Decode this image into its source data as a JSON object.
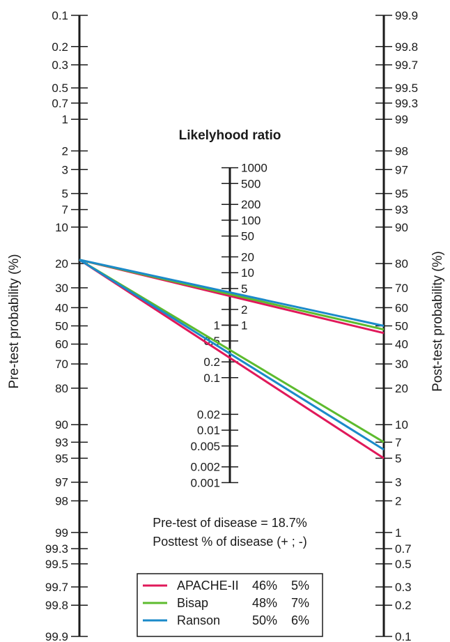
{
  "chart_data": {
    "type": "nomogram",
    "title": "Likelyhood ratio",
    "left_axis": {
      "label": "Pre-test probability (%)",
      "ticks": [
        "0.1",
        "0.2",
        "0.3",
        "0.5",
        "0.7",
        "1",
        "2",
        "3",
        "5",
        "7",
        "10",
        "20",
        "30",
        "40",
        "50",
        "60",
        "70",
        "80",
        "90",
        "93",
        "95",
        "97",
        "98",
        "99",
        "99.3",
        "99.5",
        "99.7",
        "99.8",
        "99.9"
      ]
    },
    "middle_axis": {
      "right_ticks": [
        "1000",
        "500",
        "200",
        "100",
        "50",
        "20",
        "10",
        "5",
        "2",
        "1"
      ],
      "left_ticks": [
        "1",
        "0.5",
        "0.2",
        "0.1",
        "0.02",
        "0.01",
        "0.005",
        "0.002",
        "0.001"
      ]
    },
    "right_axis": {
      "label": "Post-test probability (%)",
      "ticks": [
        "99.9",
        "99.8",
        "99.7",
        "99.5",
        "99.3",
        "99",
        "98",
        "97",
        "95",
        "93",
        "90",
        "80",
        "70",
        "60",
        "50",
        "40",
        "30",
        "20",
        "10",
        "7",
        "5",
        "3",
        "2",
        "1",
        "0.7",
        "0.5",
        "0.3",
        "0.2",
        "0.1"
      ]
    },
    "annotation": {
      "line1": "Pre-test of disease = 18.7%",
      "line2": "Posttest % of disease (+ ; -)"
    },
    "pretest_probability": 18.7,
    "series": [
      {
        "name": "APACHE-II",
        "color": "#e0195a",
        "positive": 46,
        "negative": 5,
        "positive_label": "46%",
        "negative_label": "5%"
      },
      {
        "name": "Bisap",
        "color": "#5dbb2e",
        "positive": 48,
        "negative": 7,
        "positive_label": "48%",
        "negative_label": "7%"
      },
      {
        "name": "Ranson",
        "color": "#1b8ac9",
        "positive": 50,
        "negative": 6,
        "positive_label": "50%",
        "negative_label": "6%"
      }
    ]
  }
}
